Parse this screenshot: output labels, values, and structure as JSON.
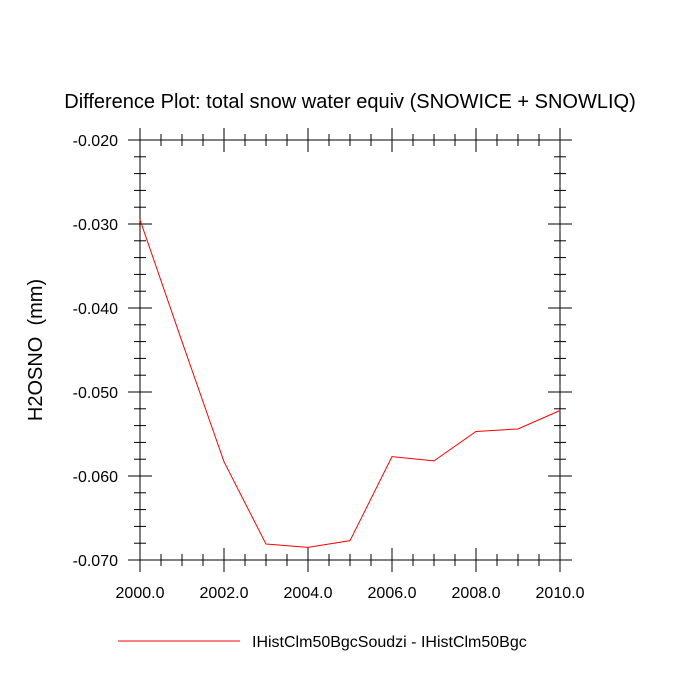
{
  "chart_data": {
    "type": "line",
    "title": "Difference Plot: total snow water equiv (SNOWICE + SNOWLIQ)",
    "xlabel": "",
    "ylabel": "H2OSNO  (mm)",
    "xlim": [
      2000.0,
      2010.0
    ],
    "ylim": [
      -0.07,
      -0.02
    ],
    "x_ticks": [
      "2000.0",
      "2002.0",
      "2004.0",
      "2006.0",
      "2008.0",
      "2010.0"
    ],
    "y_ticks": [
      "-0.020",
      "-0.030",
      "-0.040",
      "-0.050",
      "-0.060",
      "-0.070"
    ],
    "grid": false,
    "legend_position": "bottom",
    "x": [
      2000,
      2001,
      2002,
      2003,
      2004,
      2005,
      2006,
      2007,
      2008,
      2009,
      2010
    ],
    "series": [
      {
        "name": "IHistClm50BgcSoudzi - IHistClm50Bgc",
        "color": "#ff0000",
        "values": [
          -0.0295,
          -0.044,
          -0.0583,
          -0.0681,
          -0.0685,
          -0.0677,
          -0.0577,
          -0.0582,
          -0.0547,
          -0.0544,
          -0.0522
        ]
      }
    ]
  }
}
